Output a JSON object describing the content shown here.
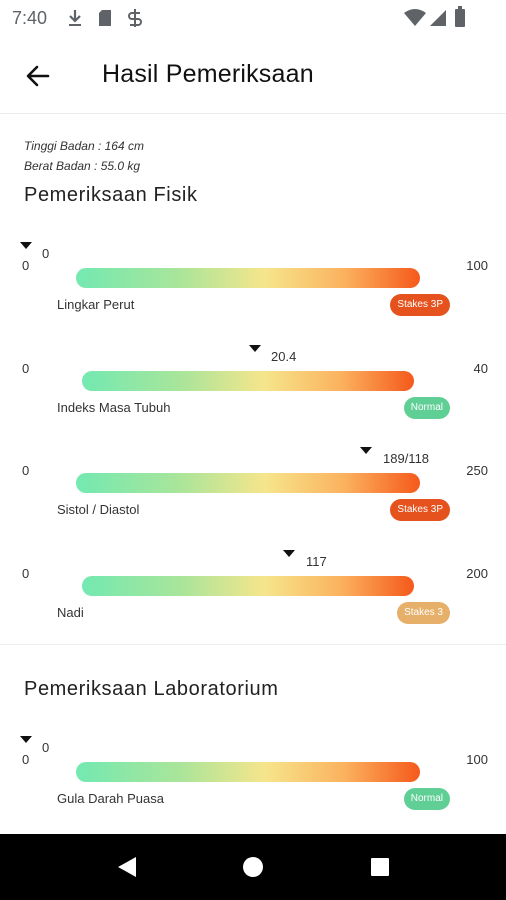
{
  "status_bar": {
    "time": "7:40",
    "icons": [
      "download-icon",
      "sd-card-icon",
      "sync-icon",
      "wifi-icon",
      "signal-icon",
      "battery-icon"
    ]
  },
  "app_bar": {
    "title": "Hasil Pemeriksaan",
    "back_icon": "arrow-back-icon"
  },
  "profile": {
    "height_text": "Tinggi Badan : 164 cm",
    "weight_text": "Berat Badan : 55.0 kg"
  },
  "sections": {
    "physical_title": "Pemeriksaan Fisik",
    "lab_title": "Pemeriksaan Laboratorium"
  },
  "metrics": [
    {
      "label": "Lingkar Perut",
      "min": "0",
      "max": "100",
      "value_text": "0",
      "value": 0,
      "scale_min": 0,
      "scale_max": 100,
      "status": "Stakes 3P",
      "status_color": "#e5521e"
    },
    {
      "label": "Indeks Masa Tubuh",
      "min": "0",
      "max": "40",
      "value_text": "20.4",
      "value": 20.4,
      "scale_min": 0,
      "scale_max": 40,
      "status": "Normal",
      "status_color": "#5fcf95"
    },
    {
      "label": "Sistol / Diastol",
      "min": "0",
      "max": "250",
      "value_text": "189/118",
      "value": 189,
      "scale_min": 0,
      "scale_max": 250,
      "status": "Stakes 3P",
      "status_color": "#e5521e"
    },
    {
      "label": "Nadi",
      "min": "0",
      "max": "200",
      "value_text": "117",
      "value": 117,
      "scale_min": 0,
      "scale_max": 200,
      "status": "Stakes 3",
      "status_color": "#e7b06a"
    },
    {
      "label": "Gula Darah Puasa",
      "min": "0",
      "max": "100",
      "value_text": "0",
      "value": 0,
      "scale_min": 0,
      "scale_max": 100,
      "status": "Normal",
      "status_color": "#5fcf95"
    }
  ],
  "nav_bar": {
    "icons": [
      "back-triangle-icon",
      "home-circle-icon",
      "recents-square-icon"
    ]
  }
}
